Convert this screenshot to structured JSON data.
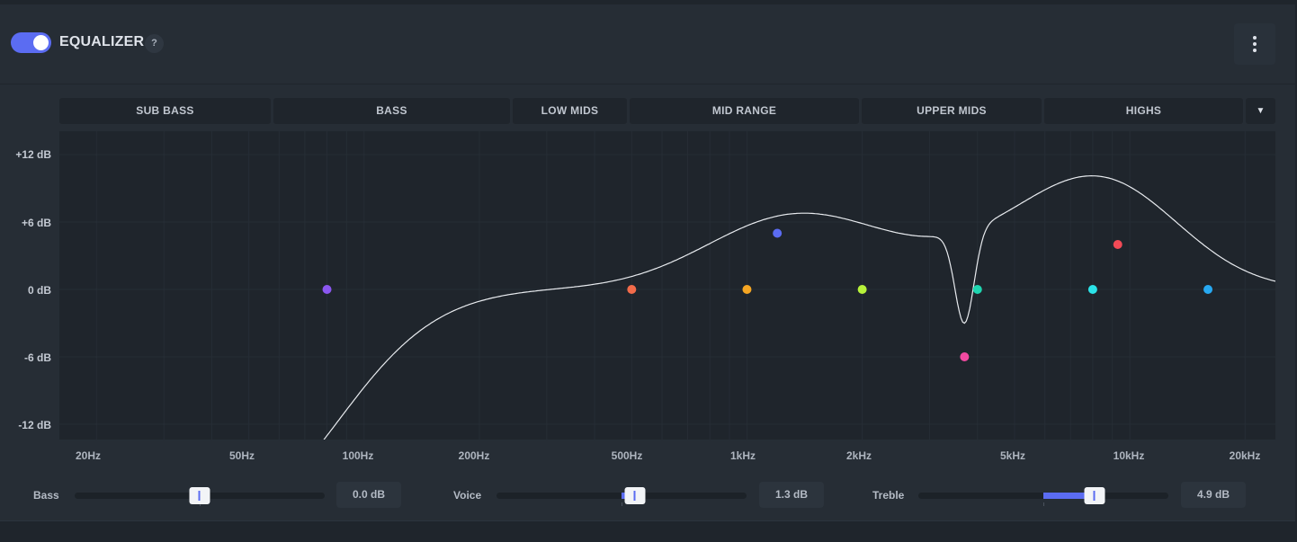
{
  "header": {
    "enabled": true,
    "title": "EQUALIZER",
    "help": "?"
  },
  "bands": [
    {
      "label": "SUB BASS"
    },
    {
      "label": "BASS"
    },
    {
      "label": "LOW MIDS"
    },
    {
      "label": "MID RANGE"
    },
    {
      "label": "UPPER MIDS"
    },
    {
      "label": "HIGHS"
    }
  ],
  "graph": {
    "y_axis_labels": [
      "+12 dB",
      "+6 dB",
      "0 dB",
      "-6 dB",
      "-12 dB"
    ],
    "x_axis_labels": [
      "20Hz",
      "50Hz",
      "100Hz",
      "200Hz",
      "500Hz",
      "1kHz",
      "2kHz",
      "5kHz",
      "10kHz",
      "20kHz"
    ],
    "ylim": [
      -12,
      12
    ],
    "xlim_hz": [
      16,
      24000
    ],
    "x_scale": "log",
    "curve_color": "#e8ebef",
    "points": [
      {
        "freq_hz": 80,
        "gain_db": 0,
        "color": "#8b57f0"
      },
      {
        "freq_hz": 500,
        "gain_db": 0,
        "color": "#f26b4a"
      },
      {
        "freq_hz": 1000,
        "gain_db": 0,
        "color": "#f5a623"
      },
      {
        "freq_hz": 1200,
        "gain_db": 5,
        "color": "#5b6cf2"
      },
      {
        "freq_hz": 2000,
        "gain_db": 0,
        "color": "#b7f23a"
      },
      {
        "freq_hz": 3700,
        "gain_db": -6,
        "color": "#f24aa1"
      },
      {
        "freq_hz": 4000,
        "gain_db": 0,
        "color": "#1ed6b0"
      },
      {
        "freq_hz": 8000,
        "gain_db": 0,
        "color": "#2be3e8"
      },
      {
        "freq_hz": 9300,
        "gain_db": 4,
        "color": "#f24a56"
      },
      {
        "freq_hz": 16000,
        "gain_db": 0,
        "color": "#27a9f2"
      }
    ]
  },
  "sliders": [
    {
      "label": "Bass",
      "value_text": "0.0 dB",
      "value": 0.0,
      "range": [
        -6,
        6
      ]
    },
    {
      "label": "Voice",
      "value_text": "1.3 dB",
      "value": 1.3,
      "range": [
        -12,
        12
      ]
    },
    {
      "label": "Treble",
      "value_text": "4.9 dB",
      "value": 4.9,
      "range": [
        -12,
        12
      ]
    }
  ]
}
